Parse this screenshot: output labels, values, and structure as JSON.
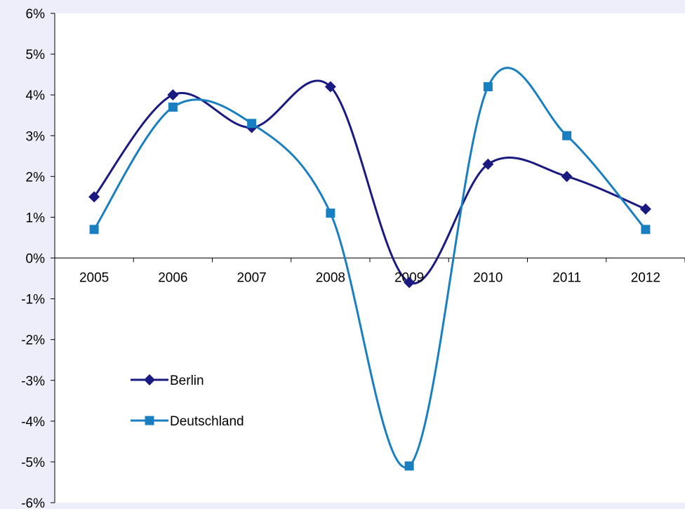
{
  "chart_data": {
    "type": "line",
    "smooth": true,
    "title": "",
    "xlabel": "",
    "ylabel": "",
    "categories": [
      "2005",
      "2006",
      "2007",
      "2008",
      "2009",
      "2010",
      "2011",
      "2012"
    ],
    "ylim": [
      -6,
      6
    ],
    "y_ticks": [
      {
        "value": 6,
        "label": "6%"
      },
      {
        "value": 5,
        "label": "5%"
      },
      {
        "value": 4,
        "label": "4%"
      },
      {
        "value": 3,
        "label": "3%"
      },
      {
        "value": 2,
        "label": "2%"
      },
      {
        "value": 1,
        "label": "1%"
      },
      {
        "value": 0,
        "label": "0%"
      },
      {
        "value": -1,
        "label": "-1%"
      },
      {
        "value": -2,
        "label": "-2%"
      },
      {
        "value": -3,
        "label": "-3%"
      },
      {
        "value": -4,
        "label": "-4%"
      },
      {
        "value": -5,
        "label": "-5%"
      },
      {
        "value": -6,
        "label": "-6%"
      }
    ],
    "grid": false,
    "legend_position": "bottom-left",
    "series": [
      {
        "name": "Berlin",
        "marker": "diamond",
        "color": "#1a1a80",
        "values": [
          1.5,
          4.0,
          3.2,
          4.2,
          -0.6,
          2.3,
          2.0,
          1.2
        ]
      },
      {
        "name": "Deutschland",
        "marker": "square",
        "color": "#1a7fc1",
        "values": [
          0.7,
          3.7,
          3.3,
          1.1,
          -5.1,
          4.2,
          3.0,
          0.7
        ]
      }
    ]
  }
}
